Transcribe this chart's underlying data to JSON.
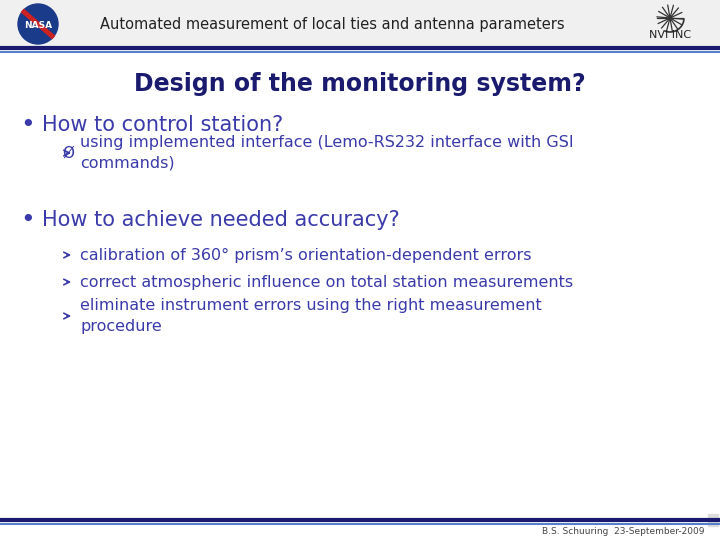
{
  "header_text": "Automated measurement of local ties and antenna parameters",
  "slide_bg": "#ffffff",
  "header_bg": "#f0f0f0",
  "title": "Design of the monitoring system?",
  "title_color": "#1a1a6e",
  "title_fontsize": 17,
  "bullet_color": "#3a3aaa",
  "sub_color": "#3a3aaa",
  "bullet1": "How to control station?",
  "bullet1_fontsize": 15,
  "sub_bullet1": "using implemented interface (Lemo-RS232 interface with GSI\ncommands)",
  "bullet2": "How to achieve needed accuracy?",
  "bullet2_fontsize": 15,
  "sub_bullet2": [
    "calibration of 360° prism’s orientation-dependent errors",
    "correct atmospheric influence on total station measurements",
    "eliminate instrument errors using the right measurement\nprocedure"
  ],
  "sub_fontsize": 11.5,
  "footer_text": "B.S. Schuuring  23-September-2009",
  "footer_color": "#444444",
  "line_dark": "#1a1a6e",
  "line_light": "#5580cc",
  "header_text_color": "#222222",
  "nvi_color": "#222222"
}
